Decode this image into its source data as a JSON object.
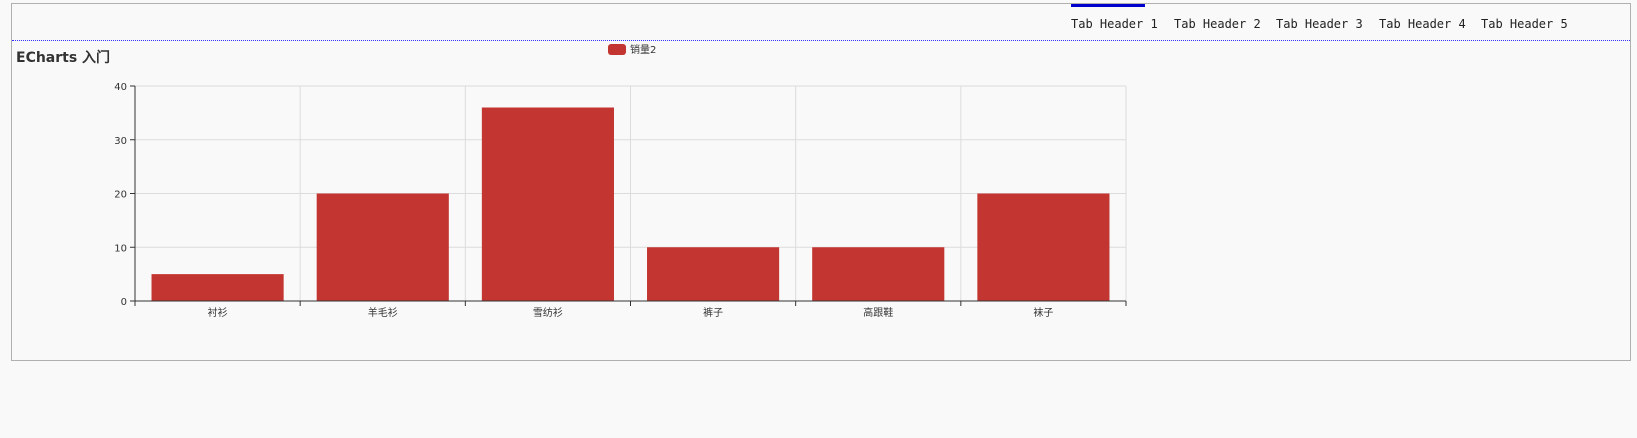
{
  "tabs": [
    {
      "label": "Tab Header 1",
      "active": true
    },
    {
      "label": "Tab Header 2",
      "active": false
    },
    {
      "label": "Tab Header 3",
      "active": false
    },
    {
      "label": "Tab Header 4",
      "active": false
    },
    {
      "label": "Tab Header 5",
      "active": false
    }
  ],
  "colors": {
    "bar": "#c23531",
    "tab_active": "#0000cc"
  },
  "chart_data": {
    "type": "bar",
    "title": "ECharts 入门",
    "categories": [
      "衬衫",
      "羊毛衫",
      "雪纺衫",
      "裤子",
      "高跟鞋",
      "袜子"
    ],
    "series": [
      {
        "name": "销量2",
        "values": [
          5,
          20,
          36,
          10,
          10,
          20
        ]
      }
    ],
    "yticks": [
      "0",
      "10",
      "20",
      "30",
      "40"
    ],
    "ylim": [
      0,
      40
    ],
    "grid": true,
    "legend_position": "top-center"
  }
}
